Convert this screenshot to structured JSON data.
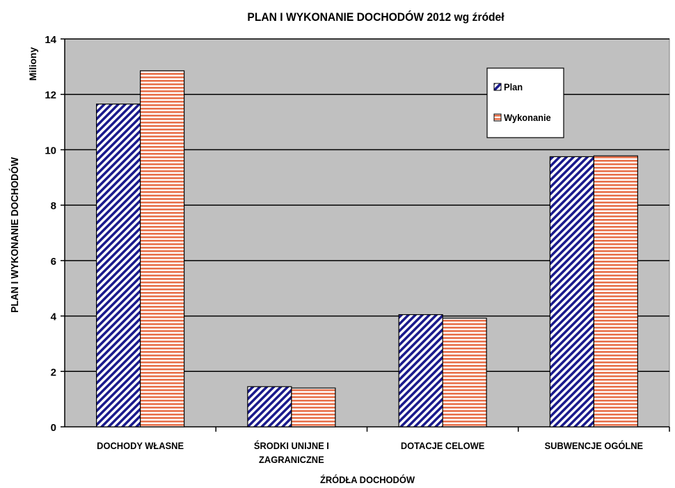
{
  "chart_data": {
    "type": "bar",
    "title": "PLAN I WYKONANIE DOCHODÓW 2012 wg źródeł",
    "xlabel": "ŹRÓDŁA DOCHODÓW",
    "ylabel": "PLAN I WYKONANIE DOCHODÓW",
    "yunit": "Miliony",
    "ylim": [
      0,
      14
    ],
    "yticks": [
      0,
      2,
      4,
      6,
      8,
      10,
      12,
      14
    ],
    "grid": true,
    "legend_position": "top-right",
    "categories": [
      [
        "DOCHODY WŁASNE"
      ],
      [
        "ŚRODKI UNIJNE I",
        "ZAGRANICZNE"
      ],
      [
        "DOTACJE CELOWE"
      ],
      [
        "SUBWENCJE OGÓLNE"
      ]
    ],
    "series": [
      {
        "name": "Plan",
        "values": [
          11.65,
          1.45,
          4.05,
          9.75
        ],
        "color": "#1a1a8c",
        "pattern": "diagonal"
      },
      {
        "name": "Wykonanie",
        "values": [
          12.85,
          1.4,
          3.92,
          9.78
        ],
        "color": "#e8704a",
        "pattern": "horizontal"
      }
    ],
    "plot_background": "#c0c0c0"
  }
}
